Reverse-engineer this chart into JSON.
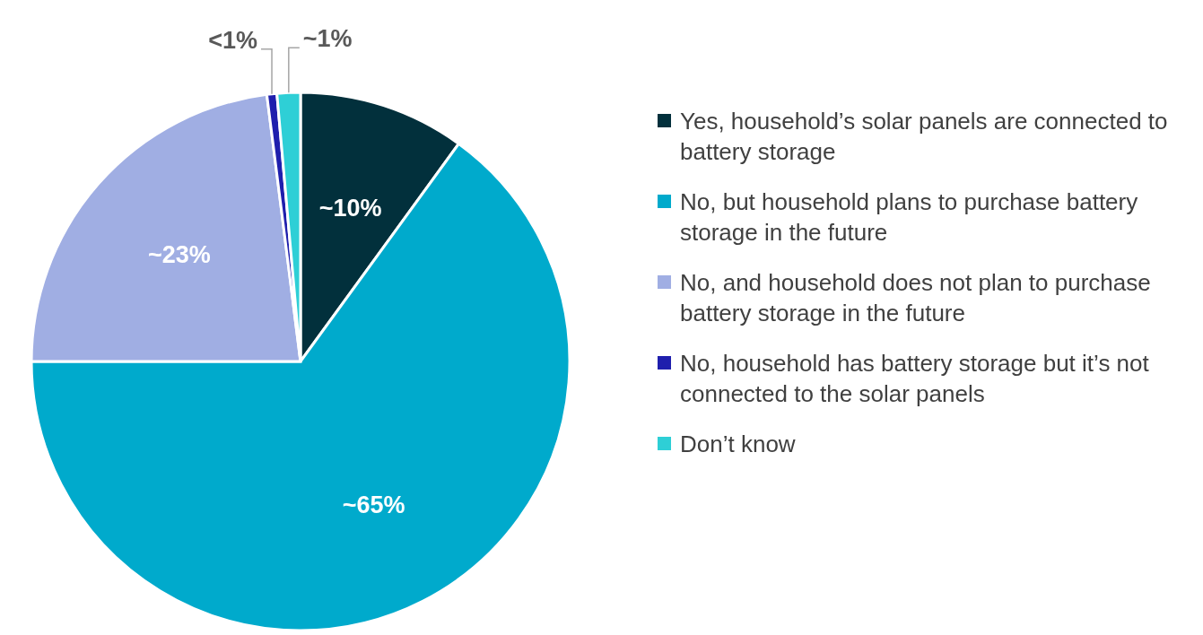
{
  "chart_data": {
    "type": "pie",
    "categories": [
      "Yes, household’s solar panels are connected to battery storage",
      "No, but household plans to purchase battery storage in the future",
      "No, and household does not plan to purchase battery storage in the future",
      "No, household has battery storage but it’s not connected to the solar panels",
      "Don’t know"
    ],
    "values": [
      10,
      65,
      23,
      0.6,
      1.4
    ],
    "value_labels": [
      "~10%",
      "~65%",
      "~23%",
      "<1%",
      "~1%"
    ],
    "colors": [
      "#02303c",
      "#00aacc",
      "#a0aee3",
      "#1f1fad",
      "#2ecfd6"
    ],
    "legend": "right"
  }
}
